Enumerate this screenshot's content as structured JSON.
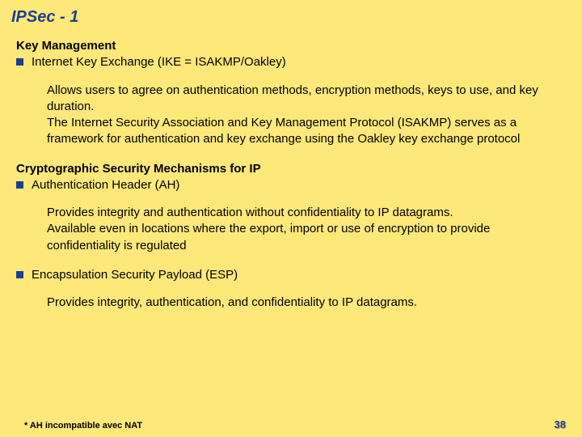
{
  "colors": {
    "background": "#fee87a",
    "title": "#1c3f94",
    "text": "#000000",
    "bullet": "#1c3f94",
    "pagenum_shadow": "#c9b45e"
  },
  "title": "IPSec - 1",
  "sections": [
    {
      "heading": "Key Management",
      "bullet": "Internet Key Exchange (IKE = ISAKMP/Oakley)",
      "body": "Allows users to agree on authentication methods, encryption methods, keys to use, and key duration.\nThe Internet Security Association and Key Management Protocol (ISAKMP) serves as a framework for authentication and key exchange using the Oakley key exchange protocol"
    },
    {
      "heading": "Cryptographic Security Mechanisms for IP",
      "bullet": "Authentication Header (AH)",
      "body": "Provides integrity and authentication without confidentiality to IP datagrams.\nAvailable even in locations where the export, import or use of encryption to provide confidentiality is regulated"
    },
    {
      "heading": "",
      "bullet": "Encapsulation Security Payload (ESP)",
      "body": "Provides integrity, authentication, and confidentiality to IP datagrams."
    }
  ],
  "footnote": "* AH incompatible avec NAT",
  "page_number": "38"
}
